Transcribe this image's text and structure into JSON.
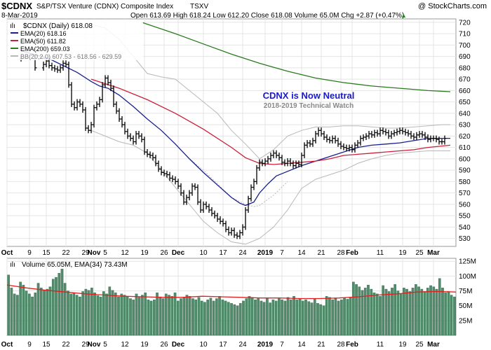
{
  "header": {
    "symbol": "$CDNX",
    "index_name": "S&P/TSX Venture (CDNX) Composite Index",
    "exchange": "TSXV",
    "watermark": "@ StockCharts.com",
    "date": "8-Mar-2019",
    "quote": "Open 613.69  High 618.24  Low 612.20  Close 618.08  Volume 65.0M  Chg +2.87 (+0.47%)",
    "quote_arrow": "▲"
  },
  "legend": {
    "price": "$CDNX (Daily) 618.08",
    "ema20": "EMA(20) 618.16",
    "ema50": "EMA(50) 611.82",
    "ema200": "EMA(200) 659.03",
    "bb": "BB(20,2.0) 607.53 - 618.56 - 629.59"
  },
  "annotation": {
    "title": "CDNX is Now Neutral",
    "subtitle": "2018-2019 Technical Watch"
  },
  "volume_legend": {
    "label": "Volume 65.05M, EMA(34) 73.43M"
  },
  "colors": {
    "bar": "#000000",
    "ema20": "#1a1f8a",
    "ema50": "#cc1f3a",
    "ema200": "#2a7a1e",
    "bb": "#b8b8b8",
    "volume": "#4f8c6a",
    "volume_ema": "#e02020",
    "grid": "#e4e4e4",
    "annotation": "#1a1acc",
    "subtitle": "#888888"
  },
  "chart_data": [
    {
      "type": "line",
      "subtype": "ohlc",
      "title": "S&P/TSX Venture (CDNX) Composite Index",
      "y_ticks": [
        530,
        540,
        550,
        560,
        570,
        580,
        590,
        600,
        610,
        620,
        630,
        640,
        650,
        660,
        670,
        680,
        690,
        700,
        710,
        720
      ],
      "ylim": [
        523,
        723
      ],
      "x_labels": [
        "Oct",
        "9",
        "15",
        "22",
        "29",
        "Nov",
        "5",
        "12",
        "19",
        "26",
        "Dec",
        "10",
        "17",
        "24",
        "2019",
        "7",
        "14",
        "21",
        "28",
        "Feb",
        "11",
        "19",
        "25",
        "Mar"
      ],
      "x_label_days": [
        0,
        8,
        14,
        21,
        28,
        31,
        35,
        42,
        49,
        56,
        61,
        70,
        77,
        84,
        92,
        98,
        105,
        112,
        119,
        123,
        133,
        141,
        147,
        152
      ],
      "x_range_days": [
        0,
        160
      ],
      "price": {
        "name": "$CDNX (Daily)",
        "days": [
          5,
          10,
          13,
          14,
          15,
          16,
          17,
          18,
          19,
          20,
          21,
          22,
          23,
          24,
          25,
          26,
          27,
          28,
          29,
          30,
          31,
          32,
          33,
          34,
          35,
          36,
          37,
          38,
          39,
          40,
          41,
          42,
          43,
          44,
          45,
          46,
          47,
          48,
          49,
          50,
          51,
          52,
          53,
          54,
          55,
          56,
          57,
          58,
          59,
          60,
          61,
          62,
          63,
          64,
          65,
          66,
          67,
          68,
          69,
          70,
          71,
          72,
          73,
          74,
          75,
          76,
          77,
          78,
          79,
          80,
          81,
          82,
          83,
          84,
          85,
          86,
          87,
          88,
          89,
          90,
          91,
          92,
          93,
          94,
          95,
          96,
          97,
          98,
          99,
          100,
          101,
          102,
          103,
          104,
          105,
          106,
          107,
          108,
          109,
          110,
          111,
          112,
          113,
          114,
          115,
          116,
          117,
          118,
          119,
          120,
          121,
          122,
          123,
          124,
          125,
          126,
          127,
          128,
          129,
          130,
          131,
          132,
          133,
          134,
          135,
          136,
          137,
          138,
          139,
          140,
          141,
          142,
          143,
          144,
          145,
          146,
          147,
          148,
          149,
          150,
          151,
          152,
          153,
          154,
          155,
          156
        ],
        "close": [
          688,
          680,
          683,
          686,
          682,
          680,
          679,
          678,
          680,
          684,
          683,
          665,
          648,
          645,
          650,
          648,
          643,
          627,
          625,
          630,
          645,
          648,
          652,
          665,
          671,
          667,
          662,
          648,
          642,
          635,
          630,
          624,
          620,
          618,
          615,
          622,
          620,
          617,
          606,
          604,
          603,
          601,
          596,
          591,
          588,
          587,
          586,
          583,
          582,
          580,
          576,
          570,
          562,
          566,
          570,
          576,
          575,
          562,
          555,
          560,
          558,
          555,
          552,
          550,
          547,
          545,
          543,
          538,
          535,
          537,
          533,
          532,
          535,
          540,
          555,
          565,
          575,
          580,
          592,
          597,
          596,
          598,
          600,
          603,
          605,
          603,
          601,
          597,
          596,
          598,
          596,
          594,
          596,
          595,
          603,
          612,
          614,
          613,
          616,
          622,
          625,
          622,
          619,
          617,
          616,
          618,
          616,
          613,
          611,
          610,
          609,
          610,
          608,
          612,
          614,
          618,
          619,
          620,
          622,
          621,
          623,
          622,
          625,
          624,
          623,
          620,
          622,
          623,
          624,
          625,
          624,
          623,
          622,
          620,
          619,
          621,
          622,
          621,
          619,
          617,
          618,
          618,
          617,
          615,
          615,
          618
        ]
      },
      "series": [
        {
          "name": "EMA(20)",
          "days": [
            5,
            15,
            25,
            30,
            33,
            36,
            40,
            45,
            50,
            55,
            60,
            65,
            70,
            75,
            80,
            83,
            85,
            88,
            90,
            93,
            96,
            100,
            105,
            110,
            115,
            120,
            125,
            130,
            135,
            140,
            145,
            150,
            155,
            158
          ],
          "values": [
            695,
            688,
            676,
            668,
            664,
            662,
            656,
            646,
            635,
            625,
            613,
            600,
            588,
            577,
            566,
            561,
            559,
            562,
            570,
            578,
            585,
            589,
            594,
            598,
            602,
            606,
            610,
            612,
            613,
            614,
            616,
            618,
            618,
            618
          ]
        },
        {
          "name": "EMA(50)",
          "days": [
            30,
            40,
            50,
            60,
            70,
            80,
            85,
            90,
            95,
            100,
            105,
            110,
            115,
            120,
            125,
            130,
            135,
            140,
            145,
            150,
            158
          ],
          "values": [
            670,
            662,
            652,
            640,
            626,
            610,
            601,
            596,
            595,
            596,
            597,
            598,
            600,
            603,
            604,
            605,
            606,
            607,
            608,
            610,
            612
          ]
        },
        {
          "name": "EMA(200)",
          "days": [
            48,
            60,
            70,
            80,
            90,
            100,
            110,
            120,
            130,
            140,
            150,
            158
          ],
          "values": [
            720,
            710,
            701,
            692,
            684,
            677,
            671,
            667,
            664,
            662,
            660,
            659
          ]
        },
        {
          "name": "BB upper",
          "days": [
            30,
            35,
            40,
            45,
            50,
            55,
            60,
            65,
            70,
            75,
            80,
            85,
            90,
            95,
            100,
            105,
            110,
            115,
            120,
            125,
            130,
            135,
            140,
            145,
            150,
            155,
            158
          ],
          "values": [
            718,
            715,
            705,
            690,
            675,
            672,
            670,
            660,
            650,
            640,
            625,
            613,
            600,
            608,
            620,
            625,
            628,
            628,
            629,
            629,
            628,
            627,
            627,
            628,
            629,
            630,
            630
          ]
        },
        {
          "name": "BB lower",
          "days": [
            30,
            35,
            40,
            45,
            50,
            55,
            60,
            65,
            70,
            75,
            80,
            85,
            90,
            95,
            100,
            105,
            110,
            115,
            120,
            125,
            130,
            135,
            140,
            145,
            150,
            155,
            158
          ],
          "values": [
            625,
            620,
            615,
            612,
            605,
            590,
            575,
            560,
            545,
            535,
            527,
            525,
            530,
            540,
            555,
            574,
            582,
            586,
            590,
            596,
            600,
            603,
            605,
            606,
            607,
            607,
            607
          ]
        },
        {
          "name": "BB middle",
          "days": [
            65,
            70,
            75,
            80,
            85,
            88,
            90,
            95,
            100
          ],
          "values": [
            600,
            590,
            578,
            566,
            560,
            558,
            559,
            568,
            580
          ]
        }
      ]
    },
    {
      "type": "bar",
      "title": "Volume",
      "y_ticks": [
        25,
        50,
        75,
        100,
        125
      ],
      "y_tick_labels": [
        "25M",
        "50M",
        "75M",
        "100M",
        "125M"
      ],
      "ylim": [
        0,
        130
      ],
      "unit": "M",
      "x_labels": [
        "Oct",
        "9",
        "15",
        "22",
        "29",
        "Nov",
        "5",
        "12",
        "19",
        "26",
        "Dec",
        "10",
        "17",
        "24",
        "2019",
        "7",
        "14",
        "21",
        "28",
        "Feb",
        "11",
        "19",
        "25",
        "Mar"
      ],
      "volume": [
        102,
        80,
        70,
        68,
        90,
        85,
        75,
        70,
        65,
        72,
        88,
        80,
        76,
        78,
        82,
        95,
        98,
        105,
        112,
        88,
        75,
        70,
        72,
        68,
        65,
        74,
        78,
        76,
        80,
        72,
        67,
        65,
        74,
        70,
        82,
        76,
        72,
        65,
        70,
        68,
        66,
        62,
        60,
        70,
        64,
        68,
        72,
        60,
        58,
        60,
        72,
        65,
        62,
        70,
        68,
        66,
        72,
        58,
        62,
        64,
        68,
        66,
        62,
        60,
        64,
        58,
        56,
        60,
        63,
        58,
        62,
        66,
        60,
        58,
        56,
        54,
        52,
        50,
        54,
        58,
        62,
        66,
        64,
        60,
        62,
        58,
        56,
        63,
        55,
        60,
        58,
        62,
        60,
        58,
        64,
        60,
        66,
        60,
        62,
        58,
        60,
        57,
        55,
        62,
        54,
        52,
        50,
        66,
        64,
        60,
        62,
        58,
        60,
        63,
        61,
        64,
        90,
        86,
        82,
        76,
        80,
        85,
        78,
        72,
        70,
        66,
        84,
        78,
        74,
        80,
        86,
        75,
        70,
        80,
        78,
        74,
        80,
        86,
        82,
        78,
        74,
        80,
        84,
        82,
        78,
        96,
        80,
        72,
        74,
        68,
        65
      ],
      "series": [
        {
          "name": "EMA(34)",
          "values": [
            85,
            80,
            76,
            73,
            70,
            68,
            66,
            65,
            64,
            64,
            66,
            65,
            64,
            63,
            63,
            62,
            62,
            63,
            65,
            68,
            70,
            73,
            74,
            73
          ]
        }
      ]
    }
  ]
}
